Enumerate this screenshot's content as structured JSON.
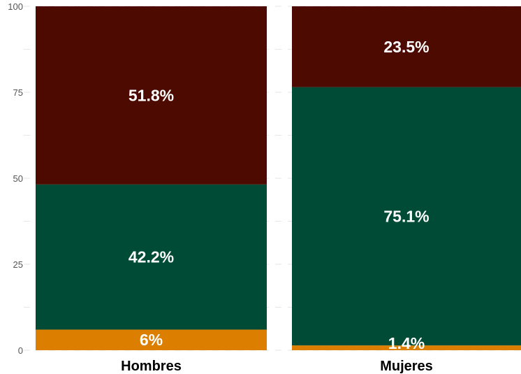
{
  "chart_data": {
    "type": "bar",
    "stacked": true,
    "categories": [
      "Hombres",
      "Mujeres"
    ],
    "series": [
      {
        "values": [
          6,
          1.4
        ],
        "labels": [
          "6%",
          "1.4%"
        ],
        "color": "#dc7f00"
      },
      {
        "values": [
          42.2,
          75.1
        ],
        "labels": [
          "42.2%",
          "75.1%"
        ],
        "color": "#004b35"
      },
      {
        "values": [
          51.8,
          23.5
        ],
        "labels": [
          "51.8%",
          "23.5%"
        ],
        "color": "#4c0a00"
      }
    ],
    "yticks": [
      "0",
      "25",
      "50",
      "75",
      "100"
    ],
    "ylim": [
      0,
      100
    ],
    "grid": true,
    "legend": "none",
    "title": "",
    "xlabel": "",
    "ylabel": ""
  }
}
